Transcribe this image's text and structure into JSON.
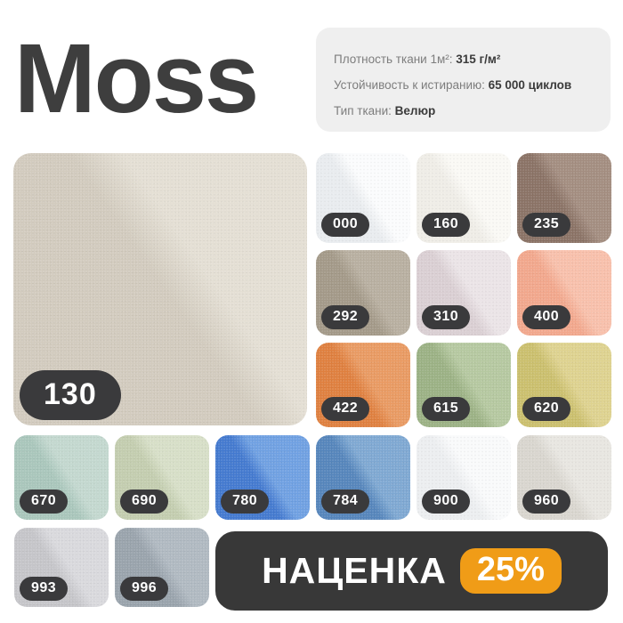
{
  "colors": {
    "css": "--pagebg:#ffffff;--title:#3e3e3e;--panelbg:#efefef;--speclabel:#7d7d7d;--specvalue:#3b3b3b;--pillbg:#3a3a3c;--pilltext:#ffffff;--barbg:#383838;--badgebg:#f09c17"
  },
  "title": "Moss",
  "specs": {
    "items": [
      {
        "label": "Плотность ткани 1м²: ",
        "value": "315 г/м²"
      },
      {
        "label": "Устойчивость к истиранию: ",
        "value": "65 000 циклов"
      },
      {
        "label": "Тип ткани: ",
        "value": "Велюр"
      }
    ]
  },
  "main_swatch": {
    "code": "130",
    "css": "--c1:#d2cbbe;--c2:#e4dfd4"
  },
  "swatches": [
    {
      "code": "000",
      "css": "--c1:#e9ecef;--c2:#fbfcfd"
    },
    {
      "code": "160",
      "css": "--c1:#efede7;--c2:#faf9f5"
    },
    {
      "code": "235",
      "css": "--c1:#8a7265;--c2:#a38d80"
    },
    {
      "code": "292",
      "css": "--c1:#a39988;--c2:#b8afa0"
    },
    {
      "code": "310",
      "css": "--c1:#dacfd3;--c2:#ebe4e7"
    },
    {
      "code": "400",
      "css": "--c1:#f2a78c;--c2:#f8c0ab"
    },
    {
      "code": "422",
      "css": "--c1:#df7f3e;--c2:#e99a62"
    },
    {
      "code": "615",
      "css": "--c1:#9bb184;--c2:#b5c8a0"
    },
    {
      "code": "620",
      "css": "--c1:#cbbf6d;--c2:#ded28f"
    },
    {
      "code": "670",
      "css": "--c1:#a9c6bb;--c2:#c3d8cf"
    },
    {
      "code": "690",
      "css": "--c1:#c3cdaf;--c2:#d7dfc7"
    },
    {
      "code": "780",
      "css": "--c1:#4379cf;--c2:#6fa0e2"
    },
    {
      "code": "784",
      "css": "--c1:#5585bb;--c2:#7ea8d2"
    },
    {
      "code": "900",
      "css": "--c1:#eceef0;--c2:#f9fafb"
    },
    {
      "code": "960",
      "css": "--c1:#d9d6cf;--c2:#e8e6e1"
    },
    {
      "code": "993",
      "css": "--c1:#c5c5c9;--c2:#d9d9dd"
    },
    {
      "code": "996",
      "css": "--c1:#99a3ac;--c2:#b0b9c1"
    }
  ],
  "markup": {
    "label": "НАЦЕНКА",
    "value": "25%"
  }
}
